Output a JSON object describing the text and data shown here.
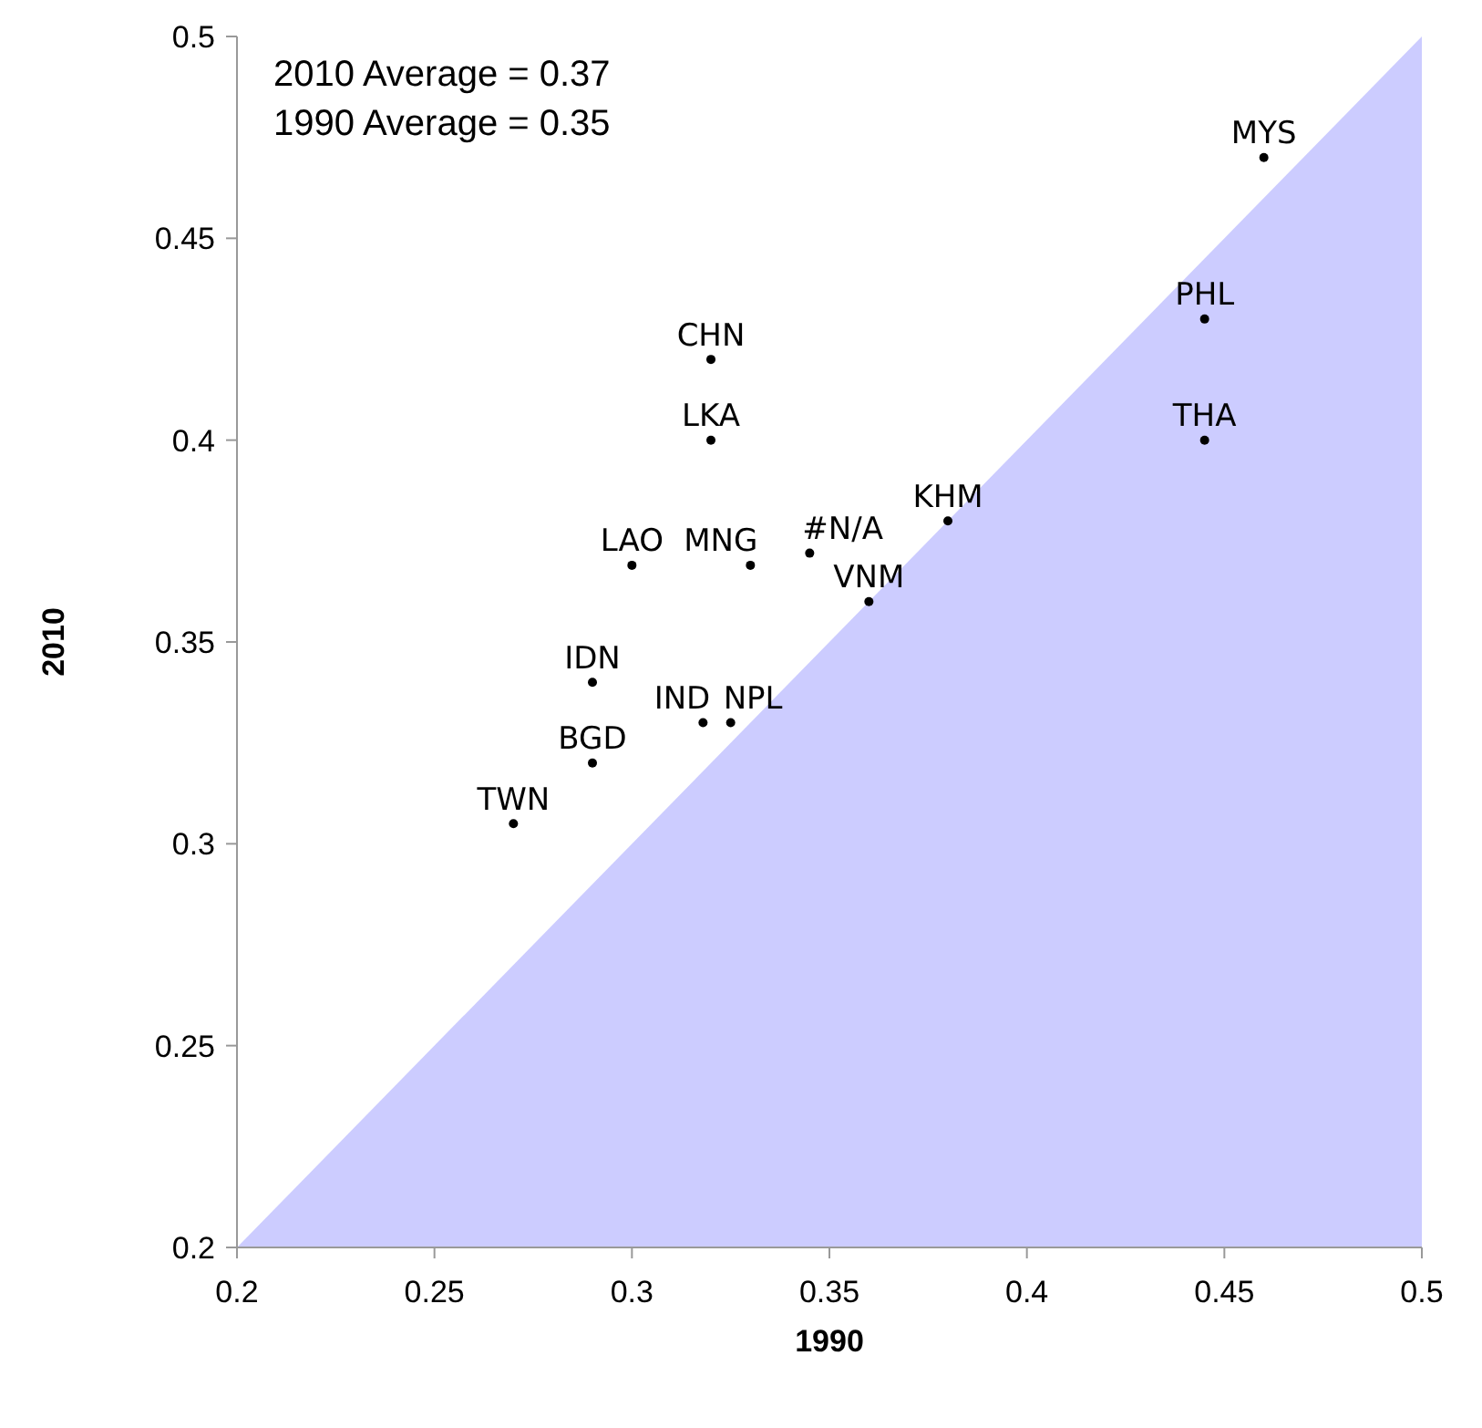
{
  "chart_data": {
    "type": "scatter",
    "xlabel": "1990",
    "ylabel": "2010",
    "xlim": [
      0.2,
      0.5
    ],
    "ylim": [
      0.2,
      0.5
    ],
    "xticks": [
      0.2,
      0.25,
      0.3,
      0.35,
      0.4,
      0.45,
      0.5
    ],
    "yticks": [
      0.2,
      0.25,
      0.3,
      0.35,
      0.4,
      0.45,
      0.5
    ],
    "grid": false,
    "annotations": [
      "2010 Average = 0.37",
      "1990 Average = 0.35"
    ],
    "series": [
      {
        "type": "area",
        "color": "#ccccff",
        "x": [
          0.2,
          0.5
        ],
        "values": [
          0.2,
          0.5
        ]
      },
      {
        "name": "MYS",
        "color": "#000000",
        "marker": "circle",
        "x": [
          0.46
        ],
        "values": [
          0.47
        ]
      },
      {
        "name": "PHL",
        "color": "#000000",
        "marker": "circle",
        "x": [
          0.445
        ],
        "values": [
          0.43
        ]
      },
      {
        "name": "THA",
        "color": "#000000",
        "marker": "circle",
        "x": [
          0.445
        ],
        "values": [
          0.4
        ]
      },
      {
        "name": "CHN",
        "color": "#000000",
        "marker": "circle",
        "x": [
          0.32
        ],
        "values": [
          0.42
        ]
      },
      {
        "name": "LKA",
        "color": "#000000",
        "marker": "circle",
        "x": [
          0.32
        ],
        "values": [
          0.4
        ]
      },
      {
        "name": "KHM",
        "color": "#000000",
        "marker": "circle",
        "x": [
          0.38
        ],
        "values": [
          0.38
        ]
      },
      {
        "name": "#N/A",
        "color": "#000000",
        "marker": "circle",
        "x": [
          0.345
        ],
        "values": [
          0.372
        ]
      },
      {
        "name": "MNG",
        "color": "#000000",
        "marker": "circle",
        "x": [
          0.33
        ],
        "values": [
          0.369
        ]
      },
      {
        "name": "LAO",
        "color": "#000000",
        "marker": "circle",
        "x": [
          0.3
        ],
        "values": [
          0.369
        ]
      },
      {
        "name": "VNM",
        "color": "#000000",
        "marker": "circle",
        "x": [
          0.36
        ],
        "values": [
          0.36
        ]
      },
      {
        "name": "IDN",
        "color": "#000000",
        "marker": "circle",
        "x": [
          0.29
        ],
        "values": [
          0.34
        ]
      },
      {
        "name": "IND",
        "color": "#000000",
        "marker": "circle",
        "x": [
          0.318
        ],
        "values": [
          0.33
        ]
      },
      {
        "name": "NPL",
        "color": "#000000",
        "marker": "circle",
        "x": [
          0.325
        ],
        "values": [
          0.33
        ]
      },
      {
        "name": "BGD",
        "color": "#000000",
        "marker": "circle",
        "x": [
          0.29
        ],
        "values": [
          0.32
        ]
      },
      {
        "name": "TWN",
        "color": "#000000",
        "marker": "circle",
        "x": [
          0.27
        ],
        "values": [
          0.305
        ]
      }
    ]
  }
}
